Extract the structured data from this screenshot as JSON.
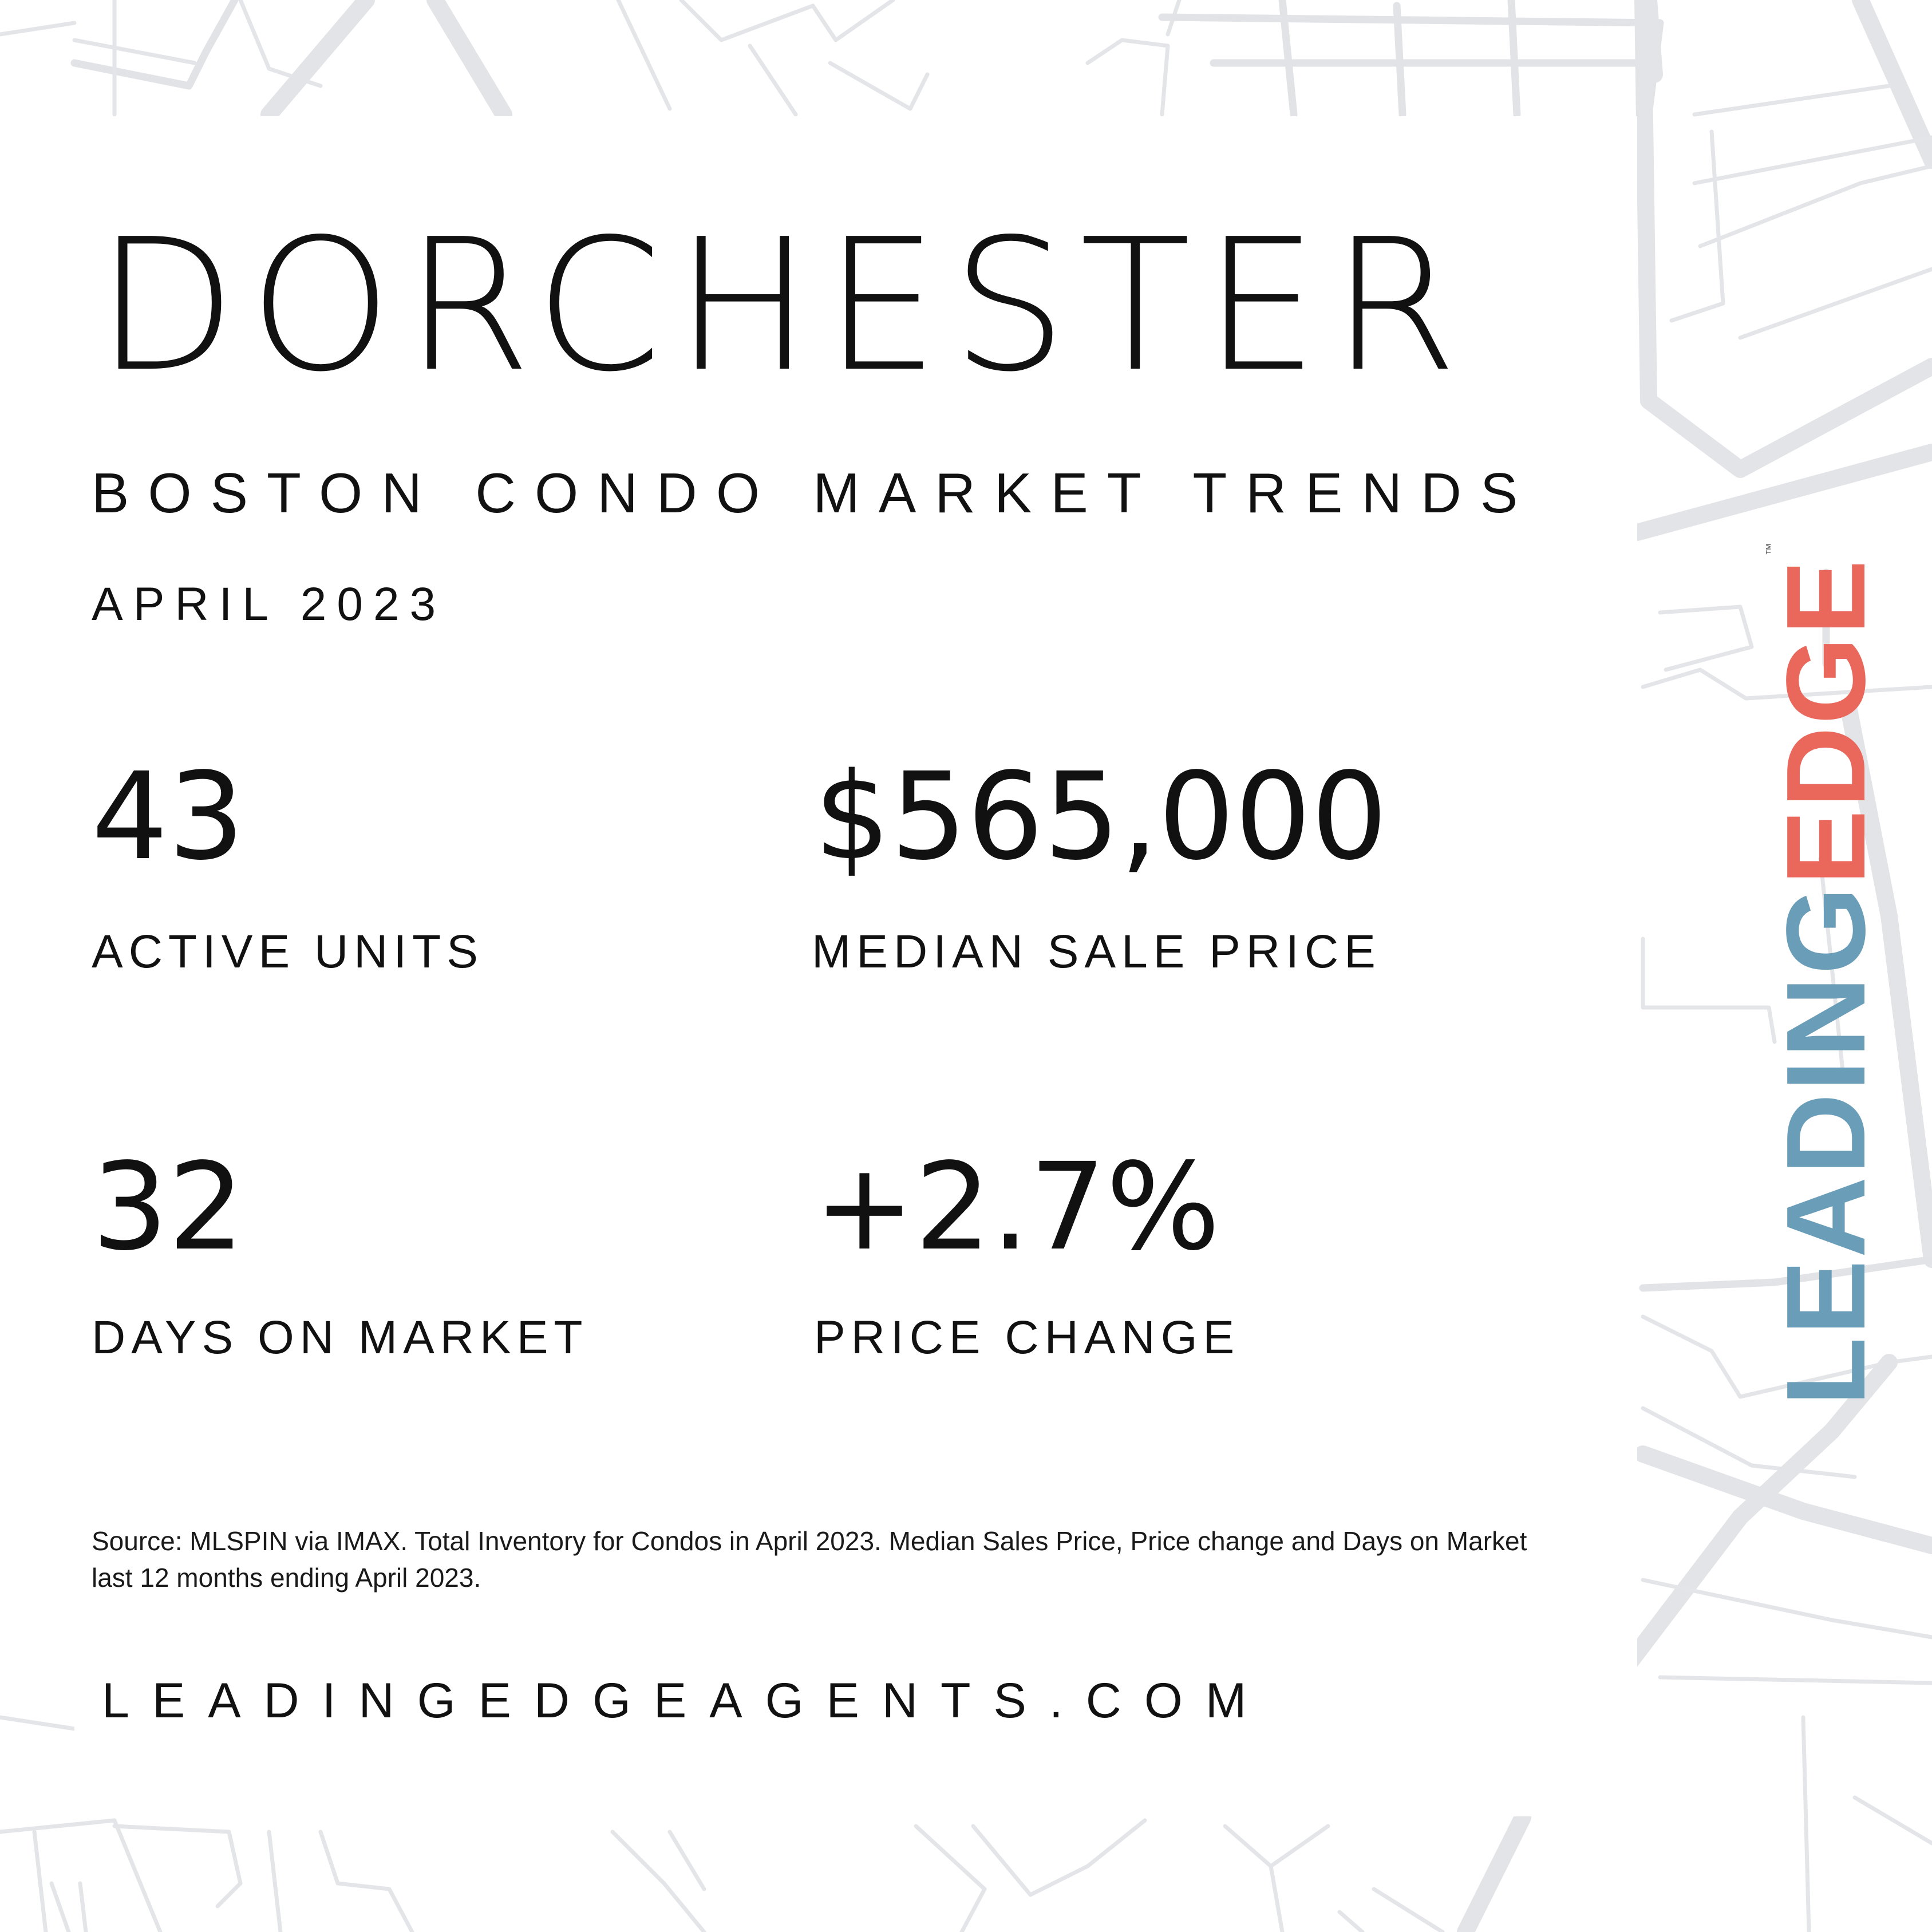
{
  "colors": {
    "background": "#ffffff",
    "text": "#111111",
    "map_lines": "#e3e4e7",
    "logo_leading": "#6a9db8",
    "logo_edge": "#ea675c"
  },
  "title": "DORCHESTER",
  "subtitle": "BOSTON CONDO MARKET TRENDS",
  "date": "APRIL 2023",
  "stats": [
    {
      "value": "43",
      "label": "ACTIVE UNITS"
    },
    {
      "value": "$565,000",
      "label": "MEDIAN SALE PRICE"
    },
    {
      "value": "32",
      "label": "DAYS ON MARKET"
    },
    {
      "value": "+2.7%",
      "label": "PRICE CHANGE"
    }
  ],
  "source_note": "Source: MLSPIN via IMAX. Total Inventory for Condos in April 2023. Median Sales Price, Price change and Days on Market last 12 months ending April 2023.",
  "website": "LEADINGEDGEAGENTS.COM",
  "logo": {
    "part1": "LEADING",
    "part2": "EDGE",
    "tm": "™"
  },
  "background_icon": "street-map-pattern"
}
